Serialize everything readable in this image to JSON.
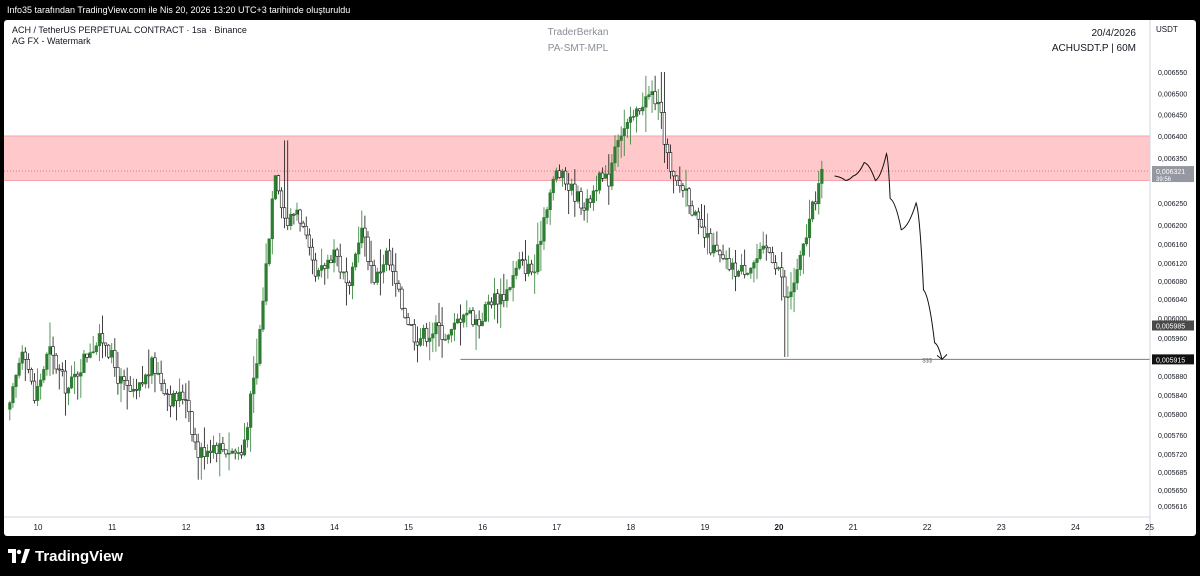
{
  "header": {
    "attribution": "Info35 tarafından TradingView.com ile Nis 20, 2026 13:20 UTC+3 tarihinde oluşturuldu"
  },
  "chart": {
    "symbol_line": "ACH / TetherUS PERPETUAL CONTRACT · 1sa · Binance",
    "indicator_line": "AG FX - Watermark",
    "author": "TraderBerkan",
    "subtitle": "PA-SMT-MPL",
    "date_label": "20/4/2026",
    "ticker_label": "ACHUSDT.P | 60M",
    "currency": "USDT",
    "liquidity_label": "$$$"
  },
  "price_axis": {
    "ticks": [
      "0,006550",
      "0,006500",
      "0,006450",
      "0,006400",
      "0,006350",
      "0,006250",
      "0,006200",
      "0,006160",
      "0,006120",
      "0,006080",
      "0,006040",
      "0,006000",
      "0,005960",
      "0,005880",
      "0,005840",
      "0,005800",
      "0,005760",
      "0,005720",
      "0,005685",
      "0,005650",
      "0,005616"
    ],
    "current_price": "0,006321",
    "countdown": "39:56",
    "tag_mid": "0,005985",
    "tag_low": "0,005915"
  },
  "time_axis": {
    "labels": [
      "10",
      "11",
      "12",
      "13",
      "14",
      "15",
      "16",
      "17",
      "18",
      "19",
      "20",
      "21",
      "22",
      "23",
      "24",
      "25"
    ],
    "bold_labels": [
      "13",
      "20"
    ]
  },
  "footer": {
    "brand": "TradingView"
  },
  "colors": {
    "up": "#2e7d32",
    "down": "#111111",
    "zone": "#ffc9cc",
    "zone_border": "#f5a3aa"
  },
  "chart_data": {
    "type": "candlestick",
    "y_unit": "USDT",
    "x_unit": "day of April 2026",
    "ylim": [
      0.0056,
      0.00659
    ],
    "xlim": [
      9.6,
      25.2
    ],
    "supply_zone": {
      "low": 0.0063,
      "high": 0.0064
    },
    "liquidity_level": {
      "price": 0.005915,
      "x_start": 15.7,
      "x_end": 25.2
    },
    "current_price": 0.006321,
    "price_path": [
      [
        9.62,
        0.00581
      ],
      [
        9.8,
        0.005955
      ],
      [
        9.95,
        0.00583
      ],
      [
        10.15,
        0.005935
      ],
      [
        10.4,
        0.00585
      ],
      [
        10.7,
        0.00594
      ],
      [
        10.9,
        0.00596
      ],
      [
        11.1,
        0.00587
      ],
      [
        11.3,
        0.005835
      ],
      [
        11.55,
        0.005905
      ],
      [
        11.8,
        0.00583
      ],
      [
        12.0,
        0.00584
      ],
      [
        12.15,
        0.00572
      ],
      [
        12.35,
        0.00574
      ],
      [
        12.55,
        0.00573
      ],
      [
        12.75,
        0.00572
      ],
      [
        12.95,
        0.0059
      ],
      [
        13.1,
        0.00615
      ],
      [
        13.2,
        0.00633
      ],
      [
        13.35,
        0.0062
      ],
      [
        13.5,
        0.00624
      ],
      [
        13.75,
        0.00608
      ],
      [
        14.0,
        0.00615
      ],
      [
        14.2,
        0.00605
      ],
      [
        14.35,
        0.0062
      ],
      [
        14.55,
        0.00608
      ],
      [
        14.7,
        0.00614
      ],
      [
        14.9,
        0.00603
      ],
      [
        15.1,
        0.00596
      ],
      [
        15.4,
        0.00598
      ],
      [
        15.55,
        0.00596
      ],
      [
        15.75,
        0.00602
      ],
      [
        15.95,
        0.00599
      ],
      [
        16.1,
        0.00604
      ],
      [
        16.3,
        0.00605
      ],
      [
        16.5,
        0.00612
      ],
      [
        16.7,
        0.0061
      ],
      [
        16.85,
        0.00624
      ],
      [
        17.0,
        0.00632
      ],
      [
        17.2,
        0.00628
      ],
      [
        17.4,
        0.00624
      ],
      [
        17.55,
        0.0063
      ],
      [
        17.7,
        0.0063
      ],
      [
        17.8,
        0.0064
      ],
      [
        18.0,
        0.00643
      ],
      [
        18.15,
        0.00648
      ],
      [
        18.3,
        0.0065
      ],
      [
        18.4,
        0.00645
      ],
      [
        18.55,
        0.0063
      ],
      [
        18.75,
        0.00628
      ],
      [
        18.9,
        0.0062
      ],
      [
        19.1,
        0.00615
      ],
      [
        19.25,
        0.00612
      ],
      [
        19.45,
        0.0061
      ],
      [
        19.65,
        0.00612
      ],
      [
        19.85,
        0.00615
      ],
      [
        20.0,
        0.00611
      ],
      [
        20.1,
        0.00603
      ],
      [
        20.25,
        0.0061
      ],
      [
        20.4,
        0.0062
      ],
      [
        20.55,
        0.0063
      ],
      [
        20.6,
        0.006321
      ]
    ],
    "key_extremes": {
      "high": 0.00655,
      "low": 0.00567
    },
    "projection_path": [
      [
        20.75,
        0.00631
      ],
      [
        20.9,
        0.0063
      ],
      [
        21.0,
        0.00631
      ],
      [
        21.15,
        0.00634
      ],
      [
        21.3,
        0.0063
      ],
      [
        21.45,
        0.00636
      ],
      [
        21.5,
        0.00626
      ],
      [
        21.65,
        0.00619
      ],
      [
        21.85,
        0.00625
      ],
      [
        21.95,
        0.00606
      ],
      [
        22.1,
        0.00595
      ],
      [
        22.2,
        0.005915
      ]
    ]
  }
}
